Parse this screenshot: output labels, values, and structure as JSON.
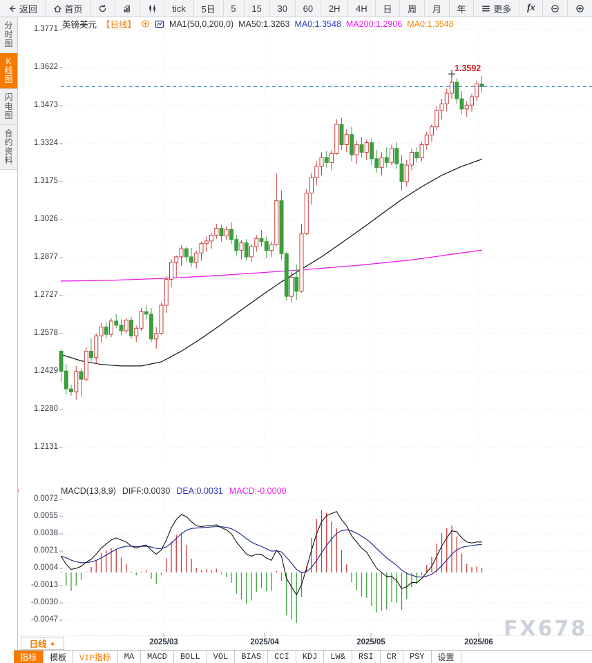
{
  "toolbar": {
    "items": [
      {
        "name": "back",
        "icon": "back-arrow",
        "label": "返回"
      },
      {
        "name": "home",
        "icon": "home",
        "label": "首页"
      },
      {
        "name": "refresh",
        "icon": "refresh",
        "label": ""
      },
      {
        "name": "chart-type-bar",
        "icon": "bar-chart",
        "label": ""
      },
      {
        "name": "chart-type-candle",
        "icon": "candles",
        "label": ""
      },
      {
        "name": "interval-tick",
        "icon": "",
        "label": "tick"
      },
      {
        "name": "interval-5d",
        "icon": "",
        "label": "5日"
      },
      {
        "name": "interval-5m",
        "icon": "",
        "label": "5"
      },
      {
        "name": "interval-15m",
        "icon": "",
        "label": "15"
      },
      {
        "name": "interval-30m",
        "icon": "",
        "label": "30"
      },
      {
        "name": "interval-60m",
        "icon": "",
        "label": "60"
      },
      {
        "name": "interval-2h",
        "icon": "",
        "label": "2H"
      },
      {
        "name": "interval-4h",
        "icon": "",
        "label": "4H"
      },
      {
        "name": "interval-day",
        "icon": "",
        "label": "日"
      },
      {
        "name": "interval-week",
        "icon": "",
        "label": "周"
      },
      {
        "name": "interval-month",
        "icon": "",
        "label": "月"
      },
      {
        "name": "interval-year",
        "icon": "",
        "label": "年"
      },
      {
        "name": "more",
        "icon": "menu",
        "label": "更多"
      },
      {
        "name": "formula",
        "icon": "fx",
        "label": ""
      },
      {
        "name": "zoom-out",
        "icon": "zoom-out",
        "label": ""
      },
      {
        "name": "zoom-in",
        "icon": "zoom-in",
        "label": ""
      }
    ]
  },
  "sidebar": {
    "items": [
      {
        "label": "分时图",
        "active": false
      },
      {
        "label": "K线图",
        "active": true
      },
      {
        "label": "闪电图",
        "active": false
      },
      {
        "label": "合约资料",
        "active": false
      }
    ]
  },
  "chart_header": {
    "symbol": "英镑美元",
    "period": "【日线】",
    "ma_setting": "MA1(50,0,200,0)",
    "ma50": "MA50:1.3263",
    "ma0_blue": "MA0:1.3548",
    "ma200": "MA200:1.2906",
    "ma0_orange": "MA0:1.3548"
  },
  "macd_header": {
    "title": "MACD(13,8,9)",
    "diff": "DIFF:0.0030",
    "dea": "DEA:0.0031",
    "macd": "MACD:-0.0000"
  },
  "period_box": {
    "label": "日线"
  },
  "watermark": {
    "text": "FX678"
  },
  "bottom_tabs": [
    {
      "label": "指标",
      "active": true,
      "vip": false
    },
    {
      "label": "模板",
      "active": false,
      "vip": false
    },
    {
      "label": "VIP指标",
      "active": false,
      "vip": true
    },
    {
      "label": "MA",
      "active": false,
      "vip": false
    },
    {
      "label": "MACD",
      "active": false,
      "vip": false
    },
    {
      "label": "BOLL",
      "active": false,
      "vip": false
    },
    {
      "label": "VOL",
      "active": false,
      "vip": false
    },
    {
      "label": "BIAS",
      "active": false,
      "vip": false
    },
    {
      "label": "CCI",
      "active": false,
      "vip": false
    },
    {
      "label": "KDJ",
      "active": false,
      "vip": false
    },
    {
      "label": "LW&",
      "active": false,
      "vip": false
    },
    {
      "label": "RSI",
      "active": false,
      "vip": false
    },
    {
      "label": "CR",
      "active": false,
      "vip": false
    },
    {
      "label": "PSY",
      "active": false,
      "vip": false
    },
    {
      "label": "设置",
      "active": false,
      "vip": false
    }
  ],
  "chart_data": {
    "type": "candlestick",
    "symbol": "英镑美元 GBP/USD",
    "period": "日线",
    "price_axis_ticks": [
      "1.3771",
      "1.3622",
      "1.3473",
      "1.3324",
      "1.3175",
      "1.3026",
      "1.2877",
      "1.2727",
      "1.2578",
      "1.2429",
      "1.2280",
      "1.2131"
    ],
    "macd_axis_ticks": [
      "0.0072",
      "0.0055",
      "0.0038",
      "0.0021",
      "0.0004",
      "-0.0013",
      "-0.0030",
      "-0.0047"
    ],
    "x_axis_labels": [
      "2025/03",
      "2025/04",
      "2025/05",
      "2025/06"
    ],
    "current_price": 1.3548,
    "peak_price_label": "1.3592",
    "peak_price": 1.3592,
    "candles": [
      [
        1.251,
        1.2518,
        1.239,
        1.2432
      ],
      [
        1.2432,
        1.246,
        1.234,
        1.2362
      ],
      [
        1.2362,
        1.2378,
        1.2335,
        1.235
      ],
      [
        1.235,
        1.2452,
        1.232,
        1.243
      ],
      [
        1.243,
        1.2442,
        1.233,
        1.24
      ],
      [
        1.24,
        1.2525,
        1.239,
        1.251
      ],
      [
        1.251,
        1.256,
        1.247,
        1.2485
      ],
      [
        1.2485,
        1.258,
        1.246,
        1.257
      ],
      [
        1.257,
        1.262,
        1.2545,
        1.2605
      ],
      [
        1.2605,
        1.2625,
        1.256,
        1.2576
      ],
      [
        1.2576,
        1.264,
        1.2565,
        1.2628
      ],
      [
        1.2628,
        1.2655,
        1.26,
        1.2612
      ],
      [
        1.2612,
        1.2635,
        1.2572,
        1.259
      ],
      [
        1.259,
        1.264,
        1.258,
        1.2632
      ],
      [
        1.2632,
        1.2645,
        1.2558,
        1.257
      ],
      [
        1.257,
        1.261,
        1.2545,
        1.26
      ],
      [
        1.26,
        1.268,
        1.259,
        1.2665
      ],
      [
        1.2665,
        1.269,
        1.2635,
        1.2655
      ],
      [
        1.2655,
        1.268,
        1.2545,
        1.2558
      ],
      [
        1.2558,
        1.2605,
        1.252,
        1.258
      ],
      [
        1.258,
        1.27,
        1.2575,
        1.269
      ],
      [
        1.269,
        1.2805,
        1.266,
        1.2792
      ],
      [
        1.2792,
        1.287,
        1.276,
        1.2858
      ],
      [
        1.2858,
        1.2885,
        1.28,
        1.288
      ],
      [
        1.288,
        1.2925,
        1.2845,
        1.2912
      ],
      [
        1.2912,
        1.292,
        1.286,
        1.288
      ],
      [
        1.288,
        1.2915,
        1.284,
        1.2858
      ],
      [
        1.2858,
        1.2905,
        1.2835,
        1.2895
      ],
      [
        1.2895,
        1.294,
        1.2865,
        1.2932
      ],
      [
        1.2932,
        1.296,
        1.29,
        1.2942
      ],
      [
        1.2942,
        1.2975,
        1.2912,
        1.2965
      ],
      [
        1.2965,
        1.301,
        1.295,
        1.2992
      ],
      [
        1.2992,
        1.3005,
        1.294,
        1.2962
      ],
      [
        1.2962,
        1.3,
        1.2945,
        1.2988
      ],
      [
        1.2988,
        1.3015,
        1.293,
        1.2948
      ],
      [
        1.2948,
        1.2965,
        1.2885,
        1.2905
      ],
      [
        1.2905,
        1.2945,
        1.287,
        1.2935
      ],
      [
        1.2935,
        1.295,
        1.2865,
        1.288
      ],
      [
        1.288,
        1.293,
        1.286,
        1.292
      ],
      [
        1.292,
        1.2965,
        1.29,
        1.2952
      ],
      [
        1.2952,
        1.2985,
        1.292,
        1.294
      ],
      [
        1.294,
        1.296,
        1.2875,
        1.2905
      ],
      [
        1.2905,
        1.294,
        1.288,
        1.2928
      ],
      [
        1.2928,
        1.3207,
        1.292,
        1.31
      ],
      [
        1.31,
        1.314,
        1.287,
        1.2892
      ],
      [
        1.2892,
        1.29,
        1.2708,
        1.2725
      ],
      [
        1.2725,
        1.282,
        1.27,
        1.28
      ],
      [
        1.28,
        1.285,
        1.271,
        1.2745
      ],
      [
        1.2745,
        1.301,
        1.274,
        1.297
      ],
      [
        1.297,
        1.3145,
        1.2965,
        1.313
      ],
      [
        1.313,
        1.321,
        1.3085,
        1.319
      ],
      [
        1.319,
        1.3255,
        1.316,
        1.3235
      ],
      [
        1.3235,
        1.329,
        1.32,
        1.327
      ],
      [
        1.327,
        1.3295,
        1.323,
        1.325
      ],
      [
        1.325,
        1.33,
        1.322,
        1.3285
      ],
      [
        1.3285,
        1.342,
        1.328,
        1.34
      ],
      [
        1.34,
        1.3425,
        1.33,
        1.332
      ],
      [
        1.332,
        1.338,
        1.329,
        1.336
      ],
      [
        1.336,
        1.339,
        1.3255,
        1.328
      ],
      [
        1.328,
        1.3335,
        1.3245,
        1.332
      ],
      [
        1.332,
        1.335,
        1.327,
        1.329
      ],
      [
        1.329,
        1.334,
        1.326,
        1.3328
      ],
      [
        1.3328,
        1.3345,
        1.324,
        1.3265
      ],
      [
        1.3265,
        1.33,
        1.321,
        1.323
      ],
      [
        1.323,
        1.329,
        1.32,
        1.327
      ],
      [
        1.327,
        1.331,
        1.323,
        1.325
      ],
      [
        1.325,
        1.332,
        1.324,
        1.3305
      ],
      [
        1.3305,
        1.333,
        1.3225,
        1.3245
      ],
      [
        1.3245,
        1.328,
        1.314,
        1.3175
      ],
      [
        1.3175,
        1.326,
        1.3155,
        1.324
      ],
      [
        1.324,
        1.3305,
        1.322,
        1.329
      ],
      [
        1.329,
        1.331,
        1.325,
        1.3268
      ],
      [
        1.3268,
        1.333,
        1.3255,
        1.332
      ],
      [
        1.332,
        1.337,
        1.33,
        1.3358
      ],
      [
        1.3358,
        1.34,
        1.333,
        1.339
      ],
      [
        1.339,
        1.347,
        1.3375,
        1.3455
      ],
      [
        1.3455,
        1.35,
        1.342,
        1.348
      ],
      [
        1.348,
        1.354,
        1.345,
        1.3522
      ],
      [
        1.3522,
        1.3592,
        1.35,
        1.3565
      ],
      [
        1.3565,
        1.358,
        1.348,
        1.35
      ],
      [
        1.35,
        1.353,
        1.344,
        1.346
      ],
      [
        1.346,
        1.349,
        1.343,
        1.3475
      ],
      [
        1.3475,
        1.352,
        1.345,
        1.3508
      ],
      [
        1.3508,
        1.3572,
        1.349,
        1.3558
      ],
      [
        1.3558,
        1.359,
        1.3524,
        1.3548
      ]
    ],
    "ma50_points": [
      [
        0,
        1.2497
      ],
      [
        4,
        1.2472
      ],
      [
        8,
        1.2458
      ],
      [
        12,
        1.2452
      ],
      [
        16,
        1.2452
      ],
      [
        20,
        1.2468
      ],
      [
        24,
        1.251
      ],
      [
        28,
        1.256
      ],
      [
        32,
        1.2615
      ],
      [
        36,
        1.2672
      ],
      [
        40,
        1.2728
      ],
      [
        44,
        1.2782
      ],
      [
        48,
        1.2832
      ],
      [
        52,
        1.288
      ],
      [
        56,
        1.2935
      ],
      [
        60,
        1.299
      ],
      [
        64,
        1.3048
      ],
      [
        68,
        1.3105
      ],
      [
        72,
        1.3155
      ],
      [
        76,
        1.32
      ],
      [
        80,
        1.3235
      ],
      [
        84,
        1.3263
      ]
    ],
    "ma200_points": [
      [
        0,
        1.2785
      ],
      [
        10,
        1.2788
      ],
      [
        20,
        1.2795
      ],
      [
        30,
        1.2805
      ],
      [
        40,
        1.2818
      ],
      [
        50,
        1.2832
      ],
      [
        60,
        1.2848
      ],
      [
        70,
        1.2868
      ],
      [
        78,
        1.289
      ],
      [
        84,
        1.2906
      ]
    ],
    "macd": {
      "params": "13,8,9",
      "diff": [
        0.0016,
        0.0008,
        0.0003,
        0.0004,
        0.0006,
        0.001,
        0.0013,
        0.0018,
        0.0024,
        0.0028,
        0.0032,
        0.0034,
        0.0032,
        0.003,
        0.0026,
        0.0024,
        0.0026,
        0.0027,
        0.0022,
        0.0018,
        0.0022,
        0.0032,
        0.0044,
        0.0052,
        0.0057,
        0.0055,
        0.005,
        0.0046,
        0.0045,
        0.0046,
        0.0046,
        0.0047,
        0.0044,
        0.0042,
        0.0038,
        0.003,
        0.0024,
        0.0018,
        0.0016,
        0.0018,
        0.0018,
        0.0014,
        0.0012,
        0.0022,
        0.0016,
        -0.0006,
        -0.0014,
        -0.0022,
        -0.0012,
        0.0004,
        0.0022,
        0.0038,
        0.005,
        0.0056,
        0.0058,
        0.006,
        0.0052,
        0.0046,
        0.0036,
        0.003,
        0.0024,
        0.002,
        0.0012,
        0.0004,
        0.0,
        -0.0004,
        -0.0004,
        -0.0008,
        -0.0016,
        -0.0014,
        -0.001,
        -0.001,
        -0.0006,
        0.0,
        0.0006,
        0.0016,
        0.0026,
        0.0034,
        0.0041,
        0.004,
        0.0034,
        0.003,
        0.0029,
        0.003,
        0.003
      ],
      "dea_rule": "ema9-of-diff",
      "hist_rule": "2x(diff-dea)",
      "last": {
        "diff": "0.0030",
        "dea": "0.0031",
        "macd": "-0.0000"
      }
    },
    "colors": {
      "up": "#c93a3a",
      "down": "#3d9e3d",
      "ma50": "#111111",
      "ma200": "#ea1bea",
      "dea": "#27338f",
      "diff": "#111111",
      "current_price_line": "#2e86e8",
      "peak_label": "#cc2222",
      "grid": "#e7e7e7",
      "accent": "#f57b00"
    }
  }
}
